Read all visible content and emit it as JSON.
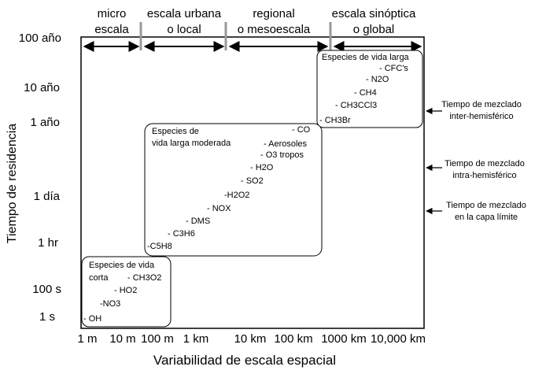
{
  "scales": [
    {
      "line1": "micro",
      "line2": "escala"
    },
    {
      "line1": "escala urbana",
      "line2": "o local"
    },
    {
      "line1": "regional",
      "line2": "o mesoescala"
    },
    {
      "line1": "escala sinóptica",
      "line2": "o global"
    }
  ],
  "y_ticks": [
    "100 año",
    "10 año",
    "1 año",
    "1 día",
    "1 hr",
    "100 s",
    "1 s"
  ],
  "x_ticks": [
    "1 m",
    "10 m",
    "100 m",
    "1 km",
    "10 km",
    "100 km",
    "1000 km",
    "10,000 km"
  ],
  "y_axis_label": "Tiempo de residencia",
  "x_axis_label": "Variabilidad de escala espacial",
  "mixing_notes": [
    {
      "line1": "Tiempo de mezclado",
      "line2": "inter-hemisférico"
    },
    {
      "line1": "Tiempo de mezclado",
      "line2": "intra-hemisférico"
    },
    {
      "line1": "Tiempo de mezclado",
      "line2": "en la capa límite"
    }
  ],
  "groups": {
    "long": {
      "title": "Especies de vida larga",
      "species": [
        "- CFC's",
        "- N2O",
        "- CH4",
        "- CH3CCl3",
        "- CH3Br"
      ]
    },
    "moderate": {
      "title_line1": "Especies de",
      "title_line2": "vida larga moderada",
      "species": [
        "- CO",
        "- Aerosoles",
        "- O3 tropos",
        "- H2O",
        "- SO2",
        "-H2O2",
        "- NOX",
        "- DMS",
        "- C3H6",
        "-C5H8"
      ]
    },
    "short": {
      "title_line1": "Especies de vida",
      "title_line2": "corta",
      "species": [
        "- CH3O2",
        "- HO2",
        "-NO3",
        "- OH"
      ]
    }
  }
}
